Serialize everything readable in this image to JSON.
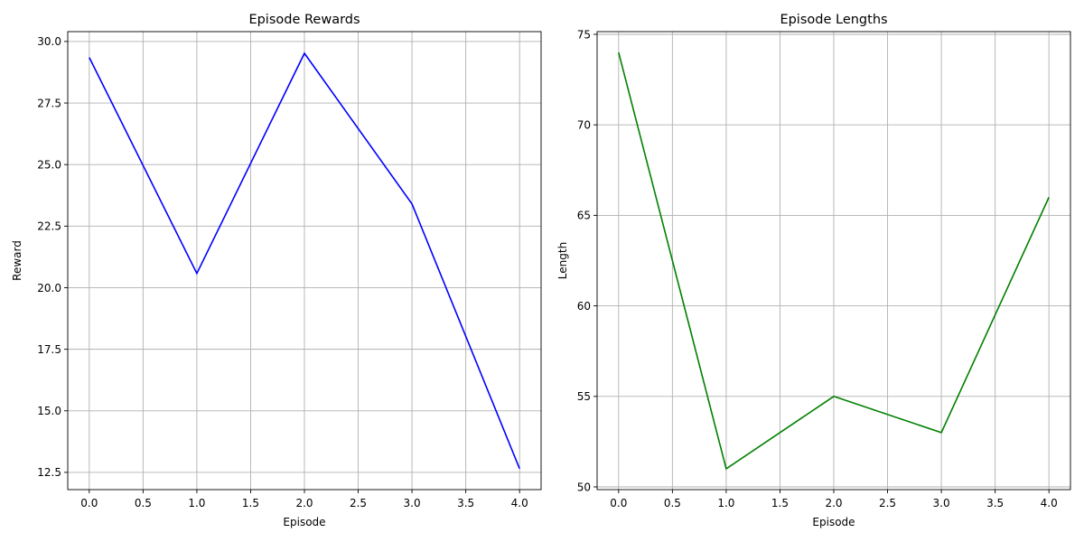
{
  "chart_data": [
    {
      "type": "line",
      "title": "Episode Rewards",
      "xlabel": "Episode",
      "ylabel": "Reward",
      "grid": true,
      "xlim": [
        -0.2,
        4.2
      ],
      "ylim": [
        11.8,
        30.4
      ],
      "xticks": [
        "0.0",
        "0.5",
        "1.0",
        "1.5",
        "2.0",
        "2.5",
        "3.0",
        "3.5",
        "4.0"
      ],
      "yticks": [
        "12.5",
        "15.0",
        "17.5",
        "20.0",
        "22.5",
        "25.0",
        "27.5",
        "30.0"
      ],
      "color": "#0000ff",
      "x": [
        0,
        1,
        2,
        3,
        4
      ],
      "y": [
        29.35,
        20.58,
        29.52,
        23.4,
        12.65
      ]
    },
    {
      "type": "line",
      "title": "Episode Lengths",
      "xlabel": "Episode",
      "ylabel": "Length",
      "grid": true,
      "xlim": [
        -0.2,
        4.2
      ],
      "ylim": [
        49.85,
        75.15
      ],
      "xticks": [
        "0.0",
        "0.5",
        "1.0",
        "1.5",
        "2.0",
        "2.5",
        "3.0",
        "3.5",
        "4.0"
      ],
      "yticks": [
        "50",
        "55",
        "60",
        "65",
        "70",
        "75"
      ],
      "color": "#008000",
      "x": [
        0,
        1,
        2,
        3,
        4
      ],
      "y": [
        74,
        51,
        55,
        53,
        66
      ]
    }
  ]
}
